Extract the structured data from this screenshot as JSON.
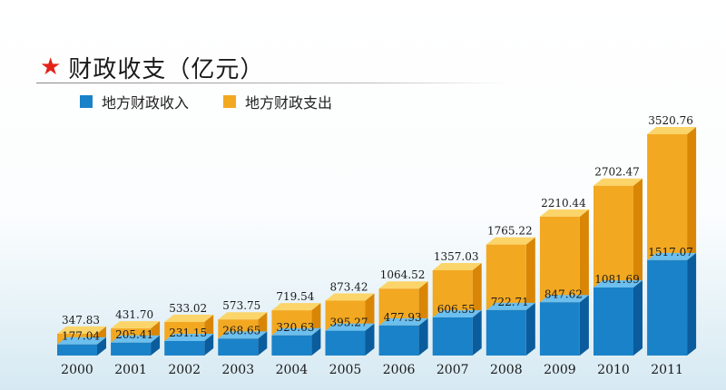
{
  "title": "财政收支（亿元）",
  "icons": {
    "title_marker": "star-icon"
  },
  "colors": {
    "revenue_front": "#1a82c8",
    "revenue_top": "#6cbfee",
    "revenue_side": "#0b5c9c",
    "expend_front": "#f3a821",
    "expend_top": "#fbd56a",
    "expend_side": "#d98606"
  },
  "chart_data": {
    "type": "bar",
    "stacked": false,
    "categories": [
      "2000",
      "2001",
      "2002",
      "2003",
      "2004",
      "2005",
      "2006",
      "2007",
      "2008",
      "2009",
      "2010",
      "2011"
    ],
    "series": [
      {
        "name": "地方财政收入",
        "values": [
          177.04,
          205.41,
          231.15,
          268.65,
          320.63,
          395.27,
          477.93,
          606.55,
          722.71,
          847.62,
          1081.69,
          1517.07
        ]
      },
      {
        "name": "地方财政支出",
        "values": [
          347.83,
          431.7,
          533.02,
          573.75,
          719.54,
          873.42,
          1064.52,
          1357.03,
          1765.22,
          2210.44,
          2702.47,
          3520.76
        ]
      }
    ],
    "value_labels": {
      "revenue": [
        "177.04",
        "205.41",
        "231.15",
        "268.65",
        "320.63",
        "395.27",
        "477.93",
        "606.55",
        "722.71",
        "847.62",
        "1081.69",
        "1517.07"
      ],
      "expenditure": [
        "347.83",
        "431.70",
        "533.02",
        "573.75",
        "719.54",
        "873.42",
        "1064.52",
        "1357.03",
        "1765.22",
        "2210.44",
        "2702.47",
        "3520.76"
      ]
    },
    "grid": false,
    "legend_position": "top-left",
    "bar_style": "3d"
  }
}
